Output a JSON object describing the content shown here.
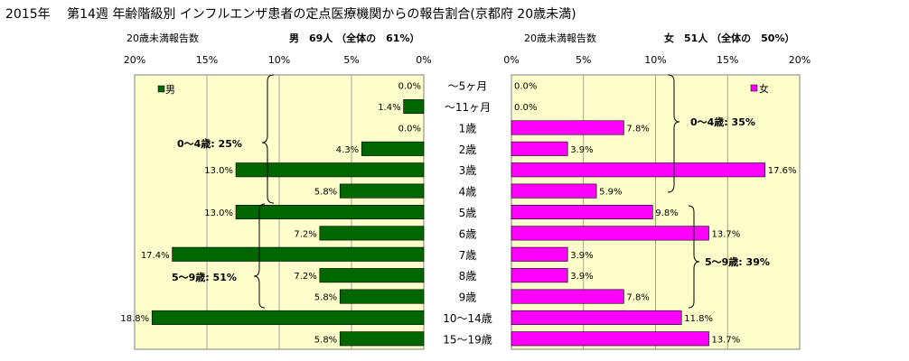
{
  "header": {
    "title": "2015年　 第14週 年齢階級別 インフルエンザ患者の定点医療機関からの報告割合(京都府 20歳未満)"
  },
  "male_panel": {
    "subtitle_left": "20歳未満報告数",
    "summary": "男　69人 （全体の　61%）",
    "legend": "男",
    "group1_label": "0～4歳: 25%",
    "group2_label": "5～9歳: 51%"
  },
  "female_panel": {
    "subtitle_left": "20歳未満報告数",
    "summary": "女　51人 （全体の　50%）",
    "legend": "女",
    "group1_label": "0～4歳: 35%",
    "group2_label": "5～9歳: 39%"
  },
  "chart_data": {
    "type": "bar",
    "orientation": "horizontal",
    "categories": [
      "～5ヶ月",
      "～11ヶ月",
      "1歳",
      "2歳",
      "3歳",
      "4歳",
      "5歳",
      "6歳",
      "7歳",
      "8歳",
      "9歳",
      "10～14歳",
      "15～19歳"
    ],
    "series": [
      {
        "name": "男",
        "color": "#006600",
        "values": [
          0.0,
          1.4,
          0.0,
          4.3,
          13.0,
          5.8,
          13.0,
          7.2,
          17.4,
          7.2,
          5.8,
          18.8,
          5.8
        ],
        "labels": [
          "0.0%",
          "1.4%",
          "0.0%",
          "4.3%",
          "13.0%",
          "5.8%",
          "13.0%",
          "7.2%",
          "17.4%",
          "7.2%",
          "5.8%",
          "18.8%",
          "5.8%"
        ]
      },
      {
        "name": "女",
        "color": "#ff00ff",
        "values": [
          0.0,
          0.0,
          7.8,
          3.9,
          17.6,
          5.9,
          9.8,
          13.7,
          3.9,
          3.9,
          7.8,
          11.8,
          13.7
        ],
        "labels": [
          "0.0%",
          "0.0%",
          "7.8%",
          "3.9%",
          "17.6%",
          "5.9%",
          "9.8%",
          "13.7%",
          "3.9%",
          "3.9%",
          "7.8%",
          "11.8%",
          "13.7%"
        ]
      }
    ],
    "male_axis": {
      "ticks": [
        "20%",
        "15%",
        "10%",
        "5%",
        "0%"
      ],
      "xlim": [
        20,
        0
      ]
    },
    "female_axis": {
      "ticks": [
        "0%",
        "5%",
        "10%",
        "15%",
        "20%"
      ],
      "xlim": [
        0,
        20
      ]
    },
    "plot_background": "#ffffcc",
    "grid": true
  }
}
